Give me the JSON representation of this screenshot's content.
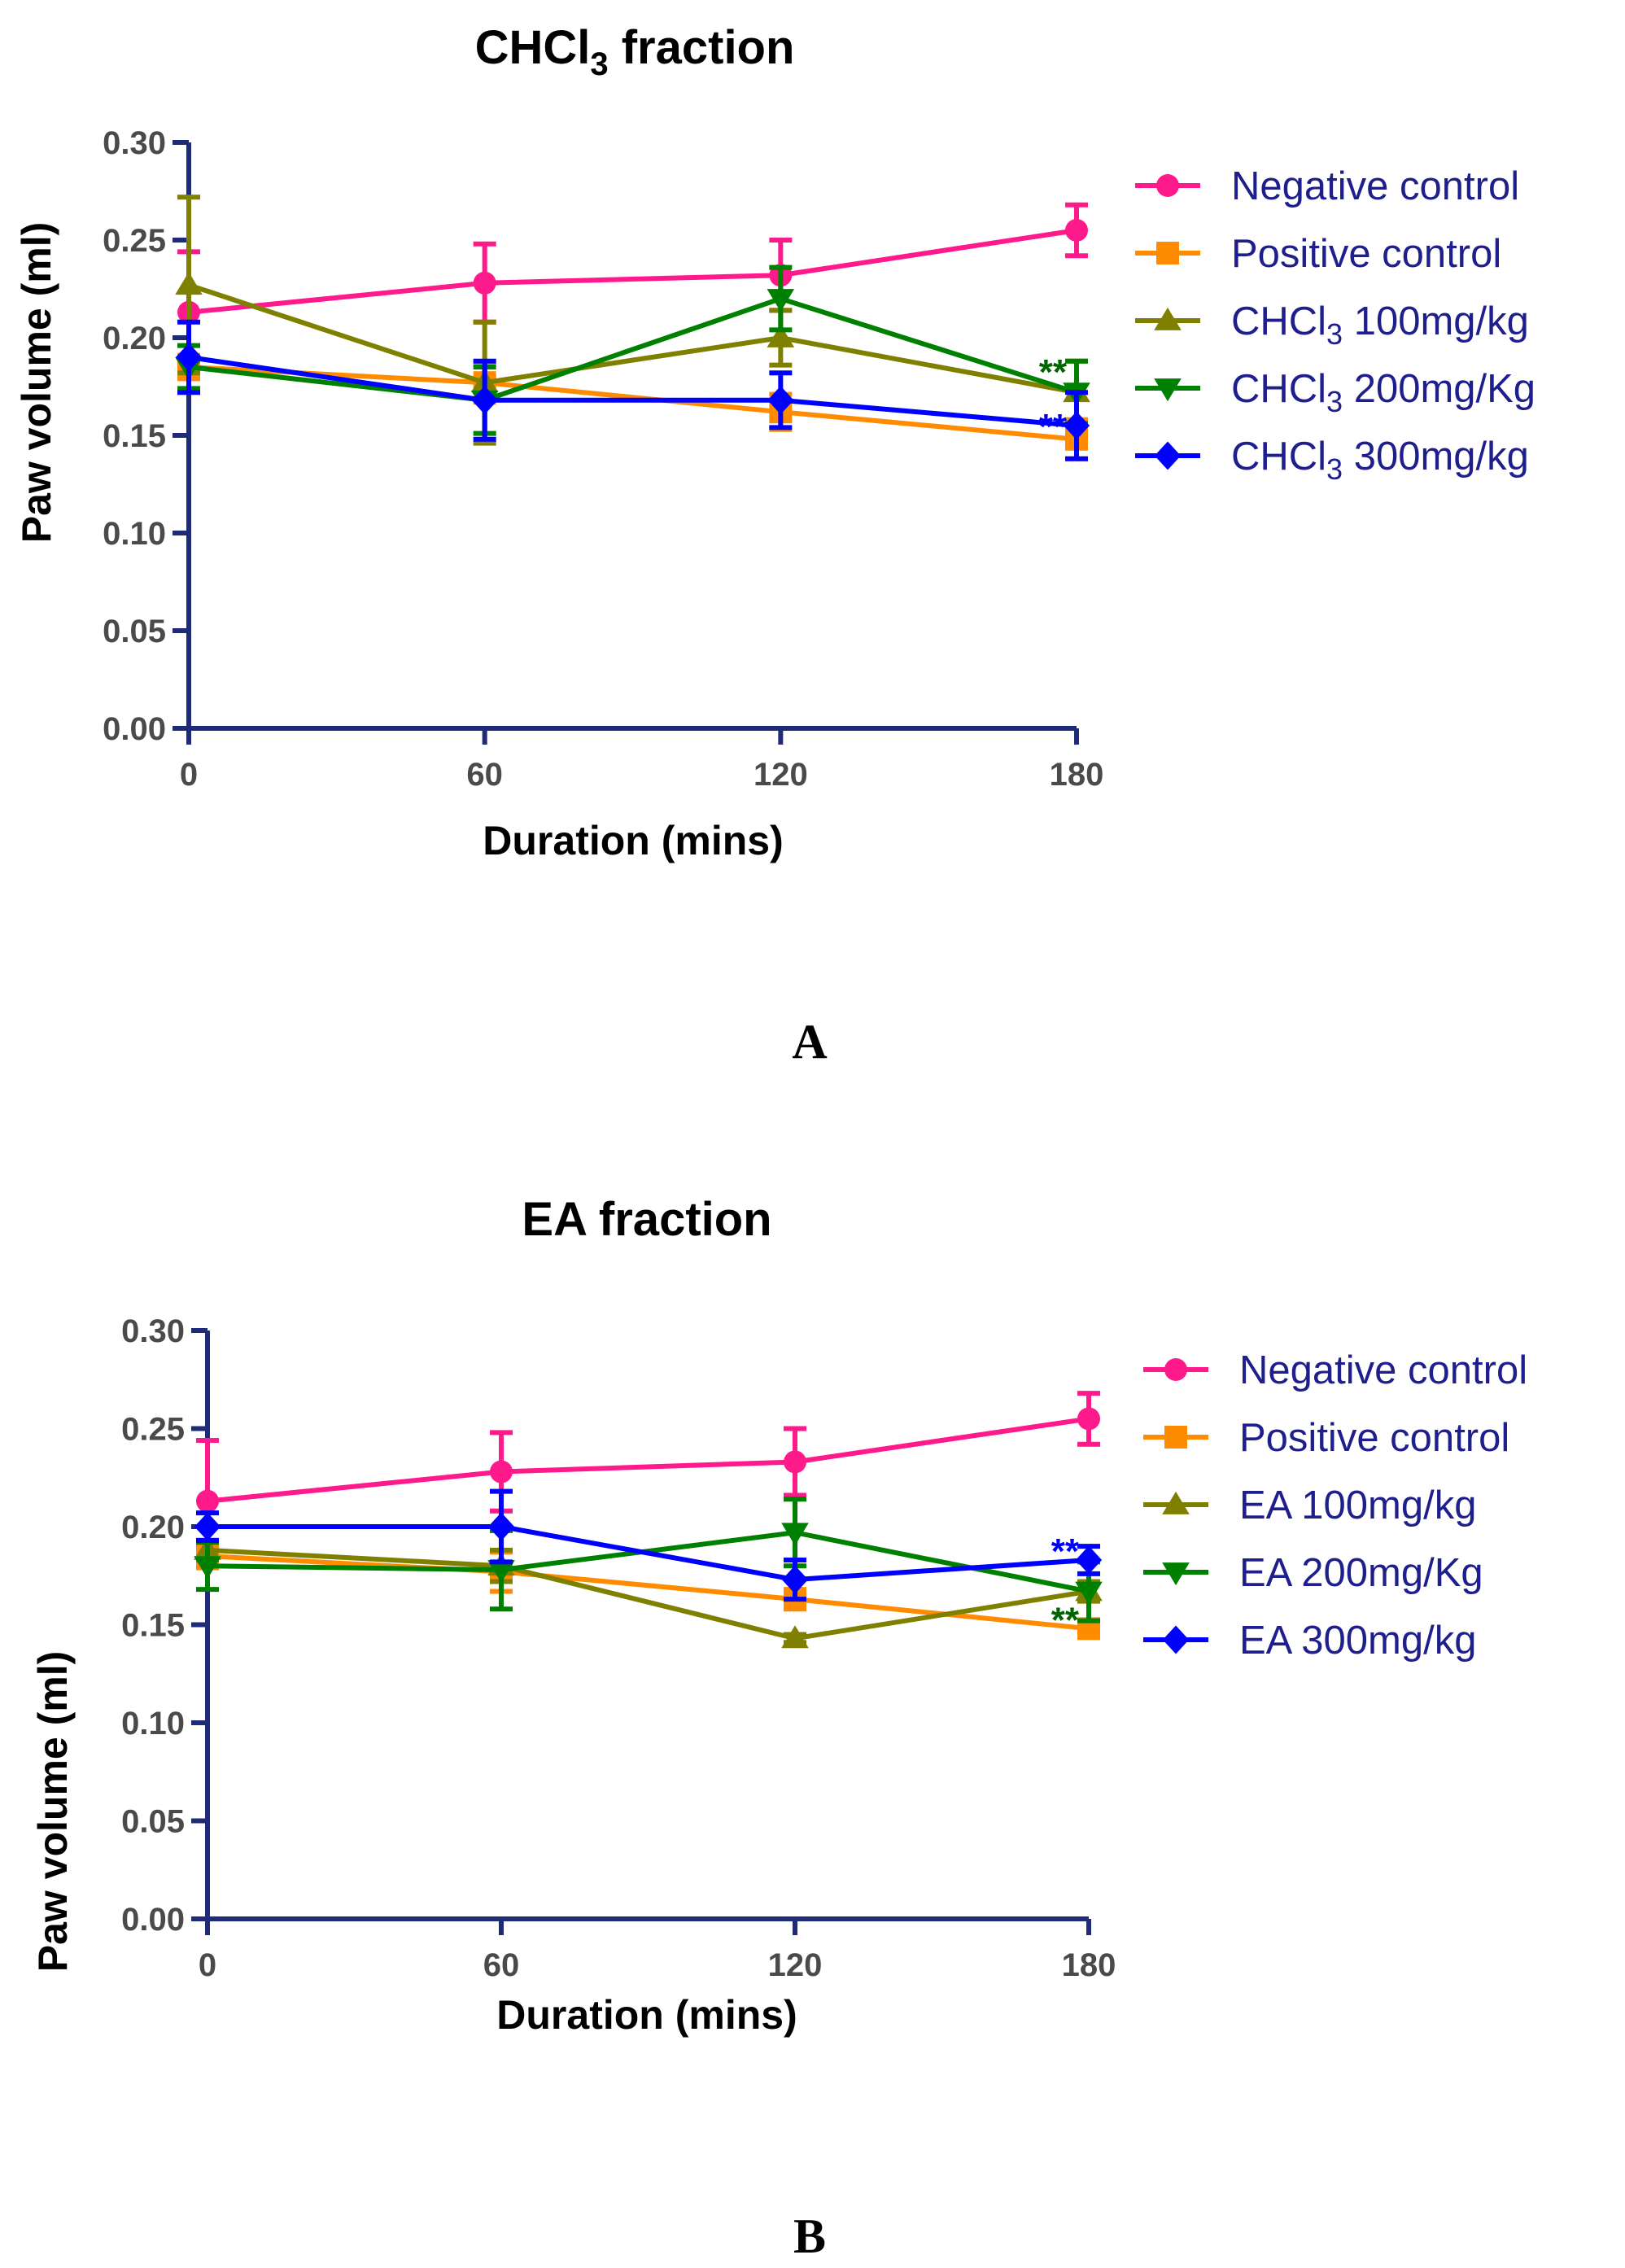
{
  "chart_data": [
    {
      "panel": "A",
      "type": "line",
      "title": "CHCl3 fraction",
      "title_main": "CHCl",
      "title_sub": "3",
      "title_rest": " fraction",
      "xlabel": "Duration (mins)",
      "ylabel": "Paw volume (ml)",
      "x": [
        0,
        60,
        120,
        180
      ],
      "xticks": [
        "0",
        "60",
        "120",
        "180"
      ],
      "yticks": [
        "0.00",
        "0.05",
        "0.10",
        "0.15",
        "0.20",
        "0.25",
        "0.30"
      ],
      "ylim": [
        0,
        0.3
      ],
      "xlim": [
        0,
        180
      ],
      "series": [
        {
          "name": "Negative control",
          "label_main": "Negative control",
          "label_sub": "",
          "label_rest": "",
          "color": "#ff1a8c",
          "marker": "circle",
          "values": [
            0.213,
            0.228,
            0.232,
            0.255
          ],
          "errors": [
            0.031,
            0.02,
            0.018,
            0.013
          ]
        },
        {
          "name": "Positive control",
          "label_main": "Positive control",
          "label_sub": "",
          "label_rest": "",
          "color": "#ff8c00",
          "marker": "square",
          "values": [
            0.185,
            0.177,
            0.162,
            0.148
          ],
          "errors": [
            0.006,
            0.01,
            0.009,
            0.01
          ]
        },
        {
          "name": "CHCl3 100mg/kg",
          "label_main": "CHCl",
          "label_sub": "3",
          "label_rest": " 100mg/kg",
          "color": "#808000",
          "marker": "triangle-up",
          "values": [
            0.227,
            0.177,
            0.2,
            0.172
          ],
          "errors": [
            0.045,
            0.031,
            0.014,
            0.016
          ]
        },
        {
          "name": "CHCl3 200mg/Kg",
          "label_main": "CHCl",
          "label_sub": "3",
          "label_rest": " 200mg/Kg",
          "color": "#008000",
          "marker": "triangle-down",
          "values": [
            0.185,
            0.168,
            0.22,
            0.172
          ],
          "errors": [
            0.011,
            0.017,
            0.016,
            0.016
          ]
        },
        {
          "name": "CHCl3 300mg/kg",
          "label_main": "CHCl",
          "label_sub": "3",
          "label_rest": " 300mg/kg",
          "color": "#0000ff",
          "marker": "diamond",
          "values": [
            0.19,
            0.168,
            0.168,
            0.155
          ],
          "errors": [
            0.018,
            0.02,
            0.014,
            0.017
          ]
        }
      ],
      "annotations": [
        {
          "text": "**",
          "x": 180,
          "y": 0.183,
          "color": "#006400"
        },
        {
          "text": "**",
          "x": 180,
          "y": 0.155,
          "color": "#0000ff"
        }
      ]
    },
    {
      "panel": "B",
      "type": "line",
      "title": "EA fraction",
      "title_main": "EA fraction",
      "title_sub": "",
      "title_rest": "",
      "xlabel": "Duration (mins)",
      "ylabel": "Paw volume (ml)",
      "x": [
        0,
        60,
        120,
        180
      ],
      "xticks": [
        "0",
        "60",
        "120",
        "180"
      ],
      "yticks": [
        "0.00",
        "0.05",
        "0.10",
        "0.15",
        "0.20",
        "0.25",
        "0.30"
      ],
      "ylim": [
        0,
        0.3
      ],
      "xlim": [
        0,
        180
      ],
      "series": [
        {
          "name": "Negative control",
          "label_main": "Negative control",
          "label_sub": "",
          "label_rest": "",
          "color": "#ff1a8c",
          "marker": "circle",
          "values": [
            0.213,
            0.228,
            0.233,
            0.255
          ],
          "errors": [
            0.031,
            0.02,
            0.017,
            0.013
          ]
        },
        {
          "name": "Positive control",
          "label_main": "Positive control",
          "label_sub": "",
          "label_rest": "",
          "color": "#ff8c00",
          "marker": "square",
          "values": [
            0.185,
            0.177,
            0.163,
            0.148
          ],
          "errors": [
            0.006,
            0.01,
            0.005,
            0.003
          ]
        },
        {
          "name": "EA 100mg/kg",
          "label_main": "EA 100mg/kg",
          "label_sub": "",
          "label_rest": "",
          "color": "#808000",
          "marker": "triangle-up",
          "values": [
            0.188,
            0.18,
            0.143,
            0.167
          ],
          "errors": [
            0.005,
            0.008,
            0.002,
            0.005
          ]
        },
        {
          "name": "EA 200mg/Kg",
          "label_main": "EA 200mg/Kg",
          "label_sub": "",
          "label_rest": "",
          "color": "#008000",
          "marker": "triangle-down",
          "values": [
            0.18,
            0.178,
            0.197,
            0.167
          ],
          "errors": [
            0.012,
            0.02,
            0.017,
            0.015
          ]
        },
        {
          "name": "EA 300mg/kg",
          "label_main": "EA 300mg/kg",
          "label_sub": "",
          "label_rest": "",
          "color": "#0000ff",
          "marker": "diamond",
          "values": [
            0.2,
            0.2,
            0.173,
            0.183
          ],
          "errors": [
            0.007,
            0.018,
            0.01,
            0.007
          ]
        }
      ],
      "annotations": [
        {
          "text": "**",
          "x": 180,
          "y": 0.188,
          "color": "#0000ff"
        },
        {
          "text": "**",
          "x": 180,
          "y": 0.153,
          "color": "#006400"
        }
      ]
    }
  ],
  "panel_labels": {
    "a": "A",
    "b": "B"
  }
}
